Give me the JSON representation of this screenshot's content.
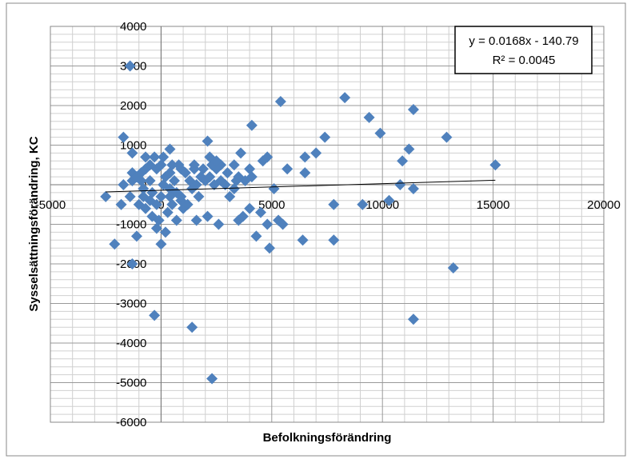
{
  "chart_data": {
    "type": "scatter",
    "x_label": "Befolkningsförändring",
    "y_label": "Sysselsättningsförändring, KC",
    "x": [
      -1400,
      8300,
      5400,
      9400,
      11400,
      4100,
      9900,
      12900,
      7400,
      2100,
      -1700,
      400,
      11200,
      7000,
      6500,
      3600,
      4800,
      4600,
      10900,
      15100,
      5700,
      6500,
      4000,
      4100,
      10800,
      11400,
      5100,
      7800,
      9100,
      10300,
      -2500,
      -1800,
      -1400,
      4000,
      4500,
      3700,
      3500,
      4800,
      5300,
      5500,
      2600,
      1600,
      2100,
      200,
      700,
      -200,
      0,
      -1100,
      4300,
      6400,
      7800,
      -2100,
      4900,
      -1300,
      13200,
      -300,
      11400,
      1400,
      2300,
      1000,
      1200,
      3100,
      3300,
      3000,
      2700,
      2500,
      2200,
      1500,
      900,
      100,
      -300,
      -700,
      -1300,
      -1300,
      -1700,
      -1300,
      400,
      -1100,
      -900,
      -700,
      -500,
      -400,
      -800,
      -1000,
      -700,
      -400,
      -200,
      0,
      100,
      200,
      400,
      600,
      700,
      900,
      500,
      300,
      -100,
      -500,
      -800,
      -200,
      0,
      500,
      800,
      1100,
      1300,
      1600,
      1800,
      2000,
      2200,
      2400,
      2700,
      2900,
      1700,
      1400,
      900,
      400,
      1500,
      1900,
      2300,
      2500,
      3300,
      3500,
      3800,
      3400,
      -500,
      -900
    ],
    "values": [
      3000,
      2200,
      2100,
      1700,
      1900,
      1500,
      1300,
      1200,
      1200,
      1100,
      1200,
      900,
      900,
      800,
      700,
      800,
      700,
      600,
      600,
      500,
      400,
      300,
      400,
      200,
      0,
      -100,
      -100,
      -500,
      -500,
      -400,
      -300,
      -500,
      -300,
      -600,
      -700,
      -800,
      -900,
      -1000,
      -900,
      -1000,
      -1000,
      -900,
      -800,
      -1200,
      -900,
      -1100,
      -1500,
      -1300,
      -1300,
      -1400,
      -1400,
      -1500,
      -1600,
      -2000,
      -2100,
      -3300,
      -3400,
      -3600,
      -4900,
      -600,
      -500,
      -300,
      -100,
      300,
      500,
      400,
      700,
      500,
      400,
      700,
      700,
      700,
      800,
      300,
      0,
      100,
      -100,
      200,
      300,
      400,
      100,
      -200,
      -300,
      -500,
      -600,
      -800,
      -500,
      -300,
      0,
      200,
      300,
      100,
      -200,
      -400,
      -500,
      -700,
      -900,
      -400,
      -100,
      400,
      500,
      500,
      500,
      300,
      100,
      0,
      200,
      100,
      200,
      0,
      100,
      0,
      -300,
      -100,
      -300,
      -300,
      400,
      400,
      500,
      600,
      500,
      200,
      100,
      100,
      500,
      100
    ],
    "color": "#4f81bd",
    "xlim": [
      -5000,
      20000
    ],
    "xticks": [
      -5000,
      0,
      5000,
      10000,
      15000,
      20000
    ],
    "ylim": [
      -6000,
      4000
    ],
    "yticks": [
      -6000,
      -5000,
      -4000,
      -3000,
      -2000,
      -1000,
      0,
      1000,
      2000,
      3000,
      4000
    ],
    "grid": true,
    "minor_grid": true,
    "trendline": {
      "slope": 0.0168,
      "intercept": -140.79,
      "equation": "y = 0.0168x - 140.79",
      "r2": "R² = 0.0045"
    }
  }
}
